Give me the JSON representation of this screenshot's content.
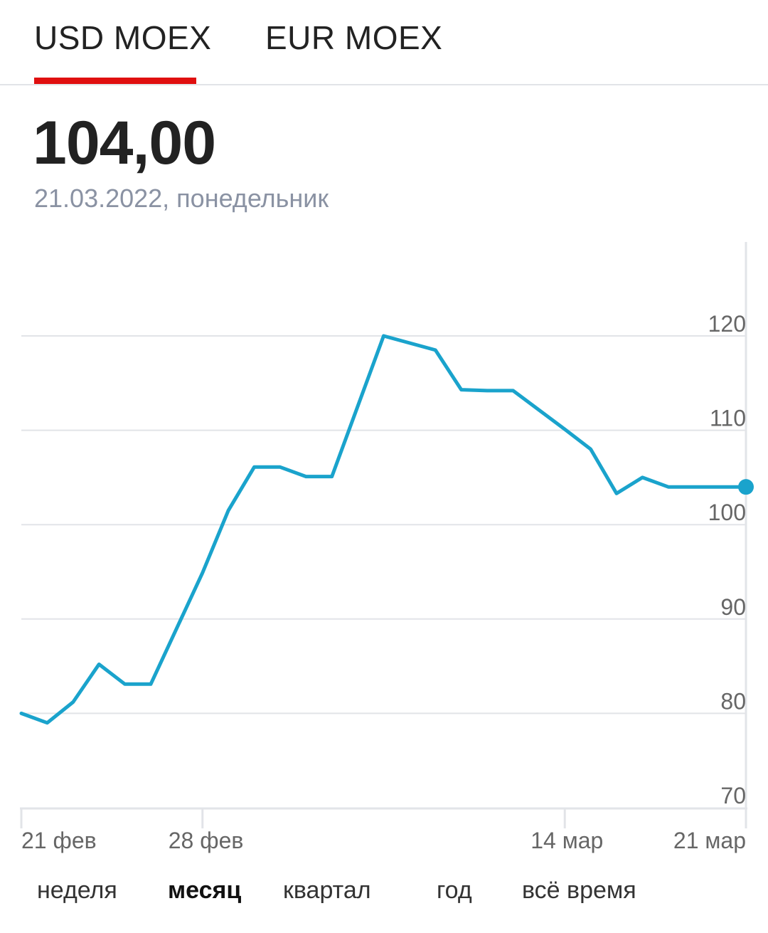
{
  "tabs": [
    {
      "label": "USD MOEX",
      "active": true
    },
    {
      "label": "EUR MOEX",
      "active": false
    }
  ],
  "quote": {
    "value": "104,00",
    "date": "21.03.2022, понедельник"
  },
  "colors": {
    "accent": "#e00f0f",
    "line": "#1aa3cc",
    "grid": "#e2e4e8",
    "muted_text": "#8a92a3"
  },
  "chart_data": {
    "type": "line",
    "title": "",
    "xlabel": "",
    "ylabel": "",
    "ylim": [
      70,
      130
    ],
    "y_ticks": [
      70,
      80,
      90,
      100,
      110,
      120
    ],
    "y_tick_labels": [
      "70",
      "80",
      "90",
      "100",
      "110",
      "120"
    ],
    "x_ticks": [
      {
        "date": "2022-02-21",
        "label": "21 фев"
      },
      {
        "date": "2022-02-28",
        "label": "28 фев"
      },
      {
        "date": "2022-03-14",
        "label": "14 мар"
      },
      {
        "date": "2022-03-21",
        "label": "21 мар"
      }
    ],
    "series": [
      {
        "name": "",
        "x": [
          "2022-02-21",
          "2022-02-22",
          "2022-02-23",
          "2022-02-24",
          "2022-02-25",
          "2022-02-26",
          "2022-02-28",
          "2022-03-01",
          "2022-03-02",
          "2022-03-03",
          "2022-03-04",
          "2022-03-05",
          "2022-03-07",
          "2022-03-09",
          "2022-03-10",
          "2022-03-11",
          "2022-03-12",
          "2022-03-14",
          "2022-03-15",
          "2022-03-16",
          "2022-03-17",
          "2022-03-18",
          "2022-03-21"
        ],
        "y": [
          80.0,
          79.0,
          81.2,
          85.2,
          83.1,
          83.1,
          94.9,
          101.5,
          106.1,
          106.1,
          105.1,
          105.1,
          120.0,
          118.5,
          114.3,
          114.2,
          114.2,
          110.1,
          108.0,
          103.3,
          105.0,
          104.0,
          104.0
        ],
        "highlight_last": true
      }
    ]
  },
  "periods": [
    {
      "label": "неделя",
      "active": false
    },
    {
      "label": "месяц",
      "active": true
    },
    {
      "label": "квартал",
      "active": false
    },
    {
      "label": "год",
      "active": false
    },
    {
      "label": "всё время",
      "active": false
    }
  ]
}
